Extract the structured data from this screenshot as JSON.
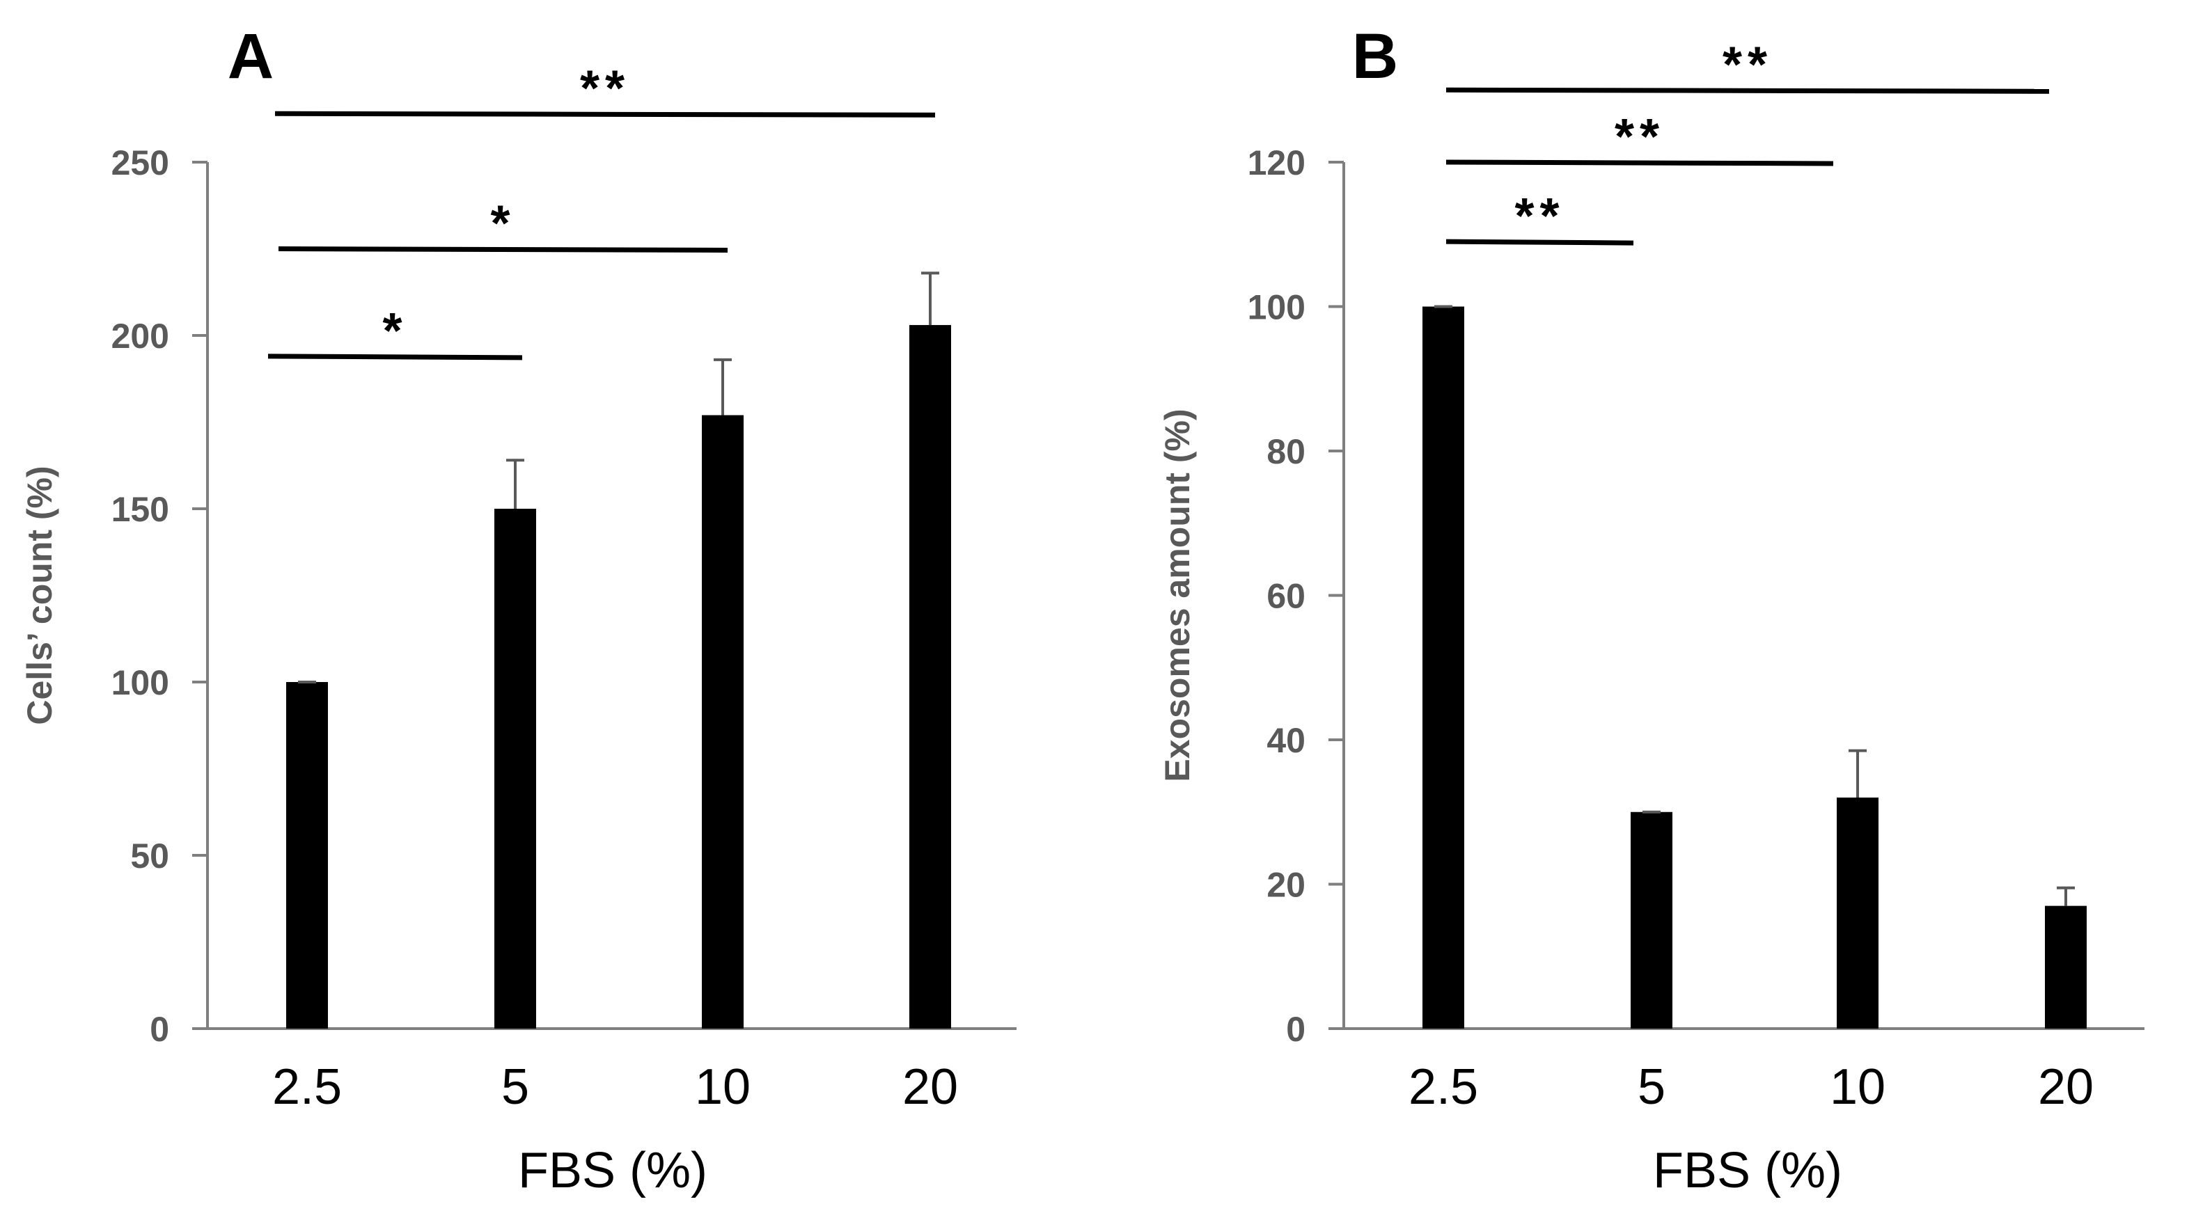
{
  "chart_data": [
    {
      "panel": "A",
      "type": "bar",
      "categories": [
        "2.5",
        "5",
        "10",
        "20"
      ],
      "values": [
        100,
        150,
        177,
        203
      ],
      "error": [
        0,
        14,
        16,
        15
      ],
      "xlabel": "FBS (%)",
      "ylabel": "Cells’ count (%)",
      "ylim": [
        0,
        250
      ],
      "yticks": [
        0,
        50,
        100,
        150,
        200,
        250
      ],
      "grid": false,
      "bar_color": "#000000",
      "significance": [
        {
          "from": 0,
          "to": 1,
          "label": "*",
          "y": 194
        },
        {
          "from": 0,
          "to": 2,
          "label": "*",
          "y": 225
        },
        {
          "from": 0,
          "to": 3,
          "label": "**",
          "y": 264
        }
      ]
    },
    {
      "panel": "B",
      "type": "bar",
      "categories": [
        "2.5",
        "5",
        "10",
        "20"
      ],
      "values": [
        100,
        30,
        32,
        17
      ],
      "error": [
        0,
        0,
        6.5,
        2.5
      ],
      "xlabel": "FBS (%)",
      "ylabel": "Exosomes amount (%)",
      "ylim": [
        0,
        120
      ],
      "yticks": [
        0,
        20,
        40,
        60,
        80,
        100,
        120
      ],
      "grid": false,
      "bar_color": "#000000",
      "significance": [
        {
          "from": 0,
          "to": 1,
          "label": "**",
          "y": 109
        },
        {
          "from": 0,
          "to": 2,
          "label": "**",
          "y": 120
        },
        {
          "from": 0,
          "to": 3,
          "label": "**",
          "y": 130
        }
      ]
    }
  ]
}
